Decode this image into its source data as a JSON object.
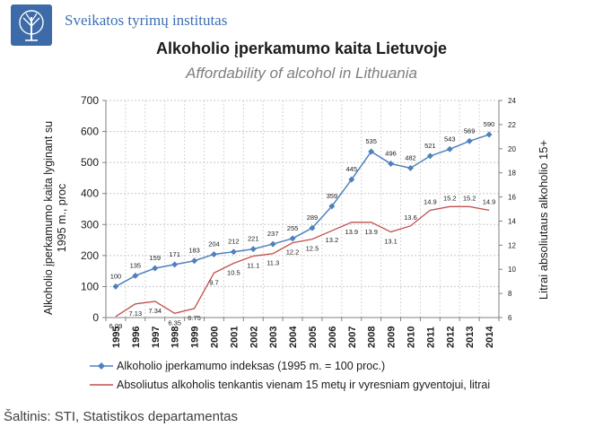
{
  "header": {
    "org_name": "Sveikatos tyrimų institutas",
    "title": "Alkoholio įperkamumo kaita Lietuvoje",
    "subtitle": "Affordability of alcohol in Lithuania",
    "source": "Šaltinis: STI, Statistikos  departamentas"
  },
  "colors": {
    "index_series": "#4f81bd",
    "consumption_series": "#c0504d",
    "logo": "#3d6aa8",
    "org_text": "#3f6fb0"
  },
  "icons": {
    "logo": "tree-logo-icon"
  },
  "chart_data": {
    "type": "line",
    "x": [
      "1995",
      "1996",
      "1997",
      "1998",
      "1999",
      "2000",
      "2001",
      "2002",
      "2003",
      "2004",
      "2005",
      "2006",
      "2007",
      "2008",
      "2009",
      "2010",
      "2011",
      "2012",
      "2013",
      "2014"
    ],
    "ylabel": "Alkoholio įperkamumo kaita lyginant su 1995 m., proc",
    "y2label": "Litrai absoliutaus alkoholio 15+",
    "ylim": [
      0,
      700
    ],
    "yticks": [
      0,
      100,
      200,
      300,
      400,
      500,
      600,
      700
    ],
    "y2lim": [
      6,
      24
    ],
    "y2ticks": [
      6,
      8,
      10,
      12,
      14,
      16,
      18,
      20,
      22,
      24
    ],
    "grid": true,
    "legend_position": "bottom",
    "series": [
      {
        "name": "Alkoholio įperkamumo indeksas (1995 m. = 100 proc.)",
        "axis": "left",
        "marker": "diamond",
        "values": [
          100,
          135,
          159,
          171,
          183,
          204,
          212,
          221,
          237,
          255,
          289,
          359,
          445,
          535,
          496,
          482,
          521,
          543,
          569,
          590
        ],
        "labels": [
          "100",
          "135",
          "159",
          "171",
          "183",
          "204",
          "212",
          "221",
          "237",
          "255",
          "289",
          "359",
          "445",
          "535",
          "496",
          "482",
          "521",
          "543",
          "569",
          "590"
        ]
      },
      {
        "name": "Absoliutus alkoholis tenkantis vienam 15 metų ir vyresniam gyventojui, litrai",
        "axis": "right",
        "marker": "none",
        "values": [
          6.09,
          7.13,
          7.34,
          6.35,
          6.75,
          9.7,
          10.5,
          11.1,
          11.3,
          12.2,
          12.5,
          13.2,
          13.9,
          13.9,
          13.1,
          13.6,
          14.9,
          15.2,
          15.2,
          14.9
        ],
        "labels": [
          "6.09",
          "7.13",
          "7.34",
          "6.35",
          "6.75",
          "9.7",
          "10.5",
          "11.1",
          "11.3",
          "12.2",
          "12.5",
          "13.2",
          "13.9",
          "13.9",
          "13.1",
          "13.6",
          "14.9",
          "15.2",
          "15.2",
          "14.9"
        ]
      }
    ]
  }
}
